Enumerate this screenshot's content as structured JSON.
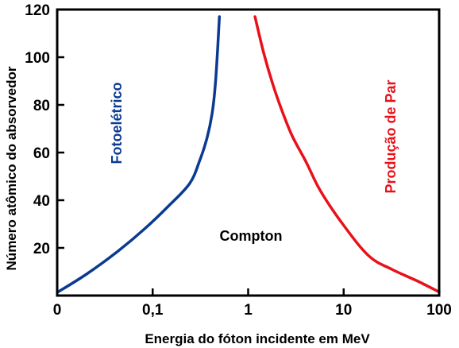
{
  "chart_data": {
    "type": "line",
    "xlabel": "Energia do fóton incidente em MeV",
    "ylabel": "Número atômico do absorvedor",
    "x_scale": "log",
    "xlim": [
      0.01,
      100
    ],
    "ylim": [
      0,
      120
    ],
    "grid": false,
    "x_ticks": [
      {
        "value": 0.01,
        "label": "0"
      },
      {
        "value": 0.1,
        "label": "0,1"
      },
      {
        "value": 1,
        "label": "1"
      },
      {
        "value": 10,
        "label": "10"
      },
      {
        "value": 100,
        "label": "100"
      }
    ],
    "y_ticks": [
      {
        "value": 20,
        "label": "20"
      },
      {
        "value": 40,
        "label": "40"
      },
      {
        "value": 60,
        "label": "60"
      },
      {
        "value": 80,
        "label": "80"
      },
      {
        "value": 100,
        "label": "100"
      },
      {
        "value": 120,
        "label": "120"
      }
    ],
    "series": [
      {
        "color": "#0a3a91",
        "x": [
          0.0102,
          0.0203,
          0.0429,
          0.0824,
          0.146,
          0.244,
          0.31,
          0.37,
          0.418,
          0.452,
          0.478,
          0.5
        ],
        "y": [
          1.5,
          9,
          18.5,
          28,
          37.5,
          47,
          56.5,
          66,
          76,
          88,
          103,
          117
        ]
      },
      {
        "color": "#e8111a",
        "x": [
          1.18,
          1.45,
          1.8,
          2.24,
          2.89,
          4.05,
          5.7,
          10.2,
          18.5,
          32,
          60,
          100
        ],
        "y": [
          117,
          102,
          89,
          78,
          67,
          56,
          44,
          29,
          16.5,
          11,
          6,
          1.5
        ]
      }
    ],
    "annotations": [
      {
        "text": "Fotoelétrico",
        "color": "#0a3a91"
      },
      {
        "text": "Compton",
        "color": "#000000"
      },
      {
        "text": "Produção de Par",
        "color": "#e8111a"
      }
    ]
  }
}
